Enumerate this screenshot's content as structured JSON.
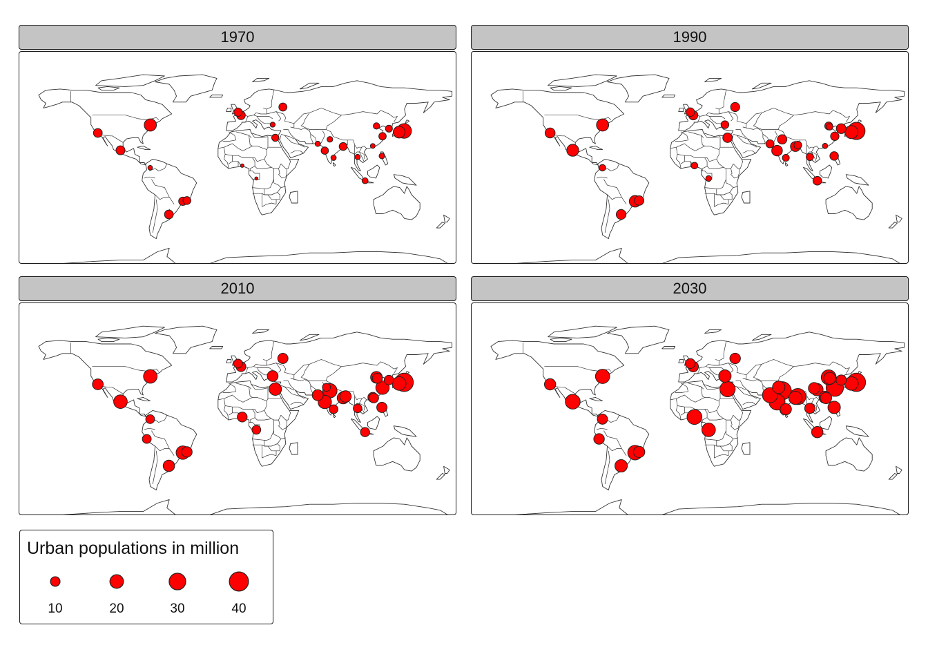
{
  "map": {
    "marker_fill": "#ff0000",
    "marker_stroke": "#222222",
    "land_stroke": "#333333",
    "strip_fill": "#c4c4c4",
    "panels": [
      {
        "year": "1970",
        "cities": [
          {
            "lon": -74,
            "lat": 40.7,
            "pop": 16.2
          },
          {
            "lon": -118.2,
            "lat": 34,
            "pop": 8.4
          },
          {
            "lon": -99.1,
            "lat": 19.4,
            "pop": 8.8
          },
          {
            "lon": -74.1,
            "lat": 4.7,
            "pop": 2.3
          },
          {
            "lon": -46.6,
            "lat": -23.5,
            "pop": 7.6
          },
          {
            "lon": -43.2,
            "lat": -22.9,
            "pop": 6.8
          },
          {
            "lon": -58.4,
            "lat": -34.6,
            "pop": 8.4
          },
          {
            "lon": -0.1,
            "lat": 51.5,
            "pop": 7.5
          },
          {
            "lon": 2.35,
            "lat": 48.9,
            "pop": 8.2
          },
          {
            "lon": 37.6,
            "lat": 55.8,
            "pop": 7.1
          },
          {
            "lon": 29,
            "lat": 41,
            "pop": 2.8
          },
          {
            "lon": 31.2,
            "lat": 30,
            "pop": 5.6
          },
          {
            "lon": 3.4,
            "lat": 6.5,
            "pop": 1.4
          },
          {
            "lon": 15.3,
            "lat": -4.3,
            "pop": 1.1
          },
          {
            "lon": 67,
            "lat": 24.9,
            "pop": 3.1
          },
          {
            "lon": 77.2,
            "lat": 28.6,
            "pop": 3.5
          },
          {
            "lon": 72.9,
            "lat": 19.1,
            "pop": 5.8
          },
          {
            "lon": 88.4,
            "lat": 22.6,
            "pop": 6.9
          },
          {
            "lon": 80.3,
            "lat": 13.1,
            "pop": 3.1
          },
          {
            "lon": 100.5,
            "lat": 13.8,
            "pop": 3.1
          },
          {
            "lon": 106.8,
            "lat": -6.2,
            "pop": 3.9
          },
          {
            "lon": 121,
            "lat": 14.6,
            "pop": 3.5
          },
          {
            "lon": 116.4,
            "lat": 39.9,
            "pop": 4.4
          },
          {
            "lon": 121.5,
            "lat": 31.2,
            "pop": 6
          },
          {
            "lon": 113.3,
            "lat": 23.1,
            "pop": 2.5
          },
          {
            "lon": 126.9,
            "lat": 37.6,
            "pop": 5.3
          },
          {
            "lon": 139.7,
            "lat": 35.7,
            "pop": 23.3
          },
          {
            "lon": 135.5,
            "lat": 34.7,
            "pop": 15.3
          }
        ]
      },
      {
        "year": "1990",
        "cities": [
          {
            "lon": -74,
            "lat": 40.7,
            "pop": 16.1
          },
          {
            "lon": -118.2,
            "lat": 34,
            "pop": 10.9
          },
          {
            "lon": -99.1,
            "lat": 19.4,
            "pop": 15.6
          },
          {
            "lon": -74.1,
            "lat": 4.7,
            "pop": 4.7
          },
          {
            "lon": -46.6,
            "lat": -23.5,
            "pop": 14.8
          },
          {
            "lon": -43.2,
            "lat": -22.9,
            "pop": 9.7
          },
          {
            "lon": -58.4,
            "lat": -34.6,
            "pop": 10.5
          },
          {
            "lon": -0.1,
            "lat": 51.5,
            "pop": 8
          },
          {
            "lon": 2.35,
            "lat": 48.9,
            "pop": 9.3
          },
          {
            "lon": 37.6,
            "lat": 55.8,
            "pop": 9
          },
          {
            "lon": 29,
            "lat": 41,
            "pop": 6.6
          },
          {
            "lon": 31.2,
            "lat": 30,
            "pop": 9.9
          },
          {
            "lon": 3.4,
            "lat": 6.5,
            "pop": 4.8
          },
          {
            "lon": 15.3,
            "lat": -4.3,
            "pop": 3.6
          },
          {
            "lon": 67,
            "lat": 24.9,
            "pop": 7.1
          },
          {
            "lon": 77.2,
            "lat": 28.6,
            "pop": 9.7
          },
          {
            "lon": 72.9,
            "lat": 19.1,
            "pop": 12.4
          },
          {
            "lon": 88.4,
            "lat": 22.6,
            "pop": 10.9
          },
          {
            "lon": 80.3,
            "lat": 13.1,
            "pop": 5.3
          },
          {
            "lon": 90.4,
            "lat": 23.8,
            "pop": 6.6
          },
          {
            "lon": 100.5,
            "lat": 13.8,
            "pop": 5.9
          },
          {
            "lon": 106.8,
            "lat": -6.2,
            "pop": 8.2
          },
          {
            "lon": 121,
            "lat": 14.6,
            "pop": 8
          },
          {
            "lon": 116.4,
            "lat": 39.9,
            "pop": 6.8
          },
          {
            "lon": 121.5,
            "lat": 31.2,
            "pop": 7.8
          },
          {
            "lon": 117.2,
            "lat": 39.1,
            "pop": 4.6
          },
          {
            "lon": 113.3,
            "lat": 23.1,
            "pop": 3.1
          },
          {
            "lon": 126.9,
            "lat": 37.6,
            "pop": 10.5
          },
          {
            "lon": 139.7,
            "lat": 35.7,
            "pop": 32.5
          },
          {
            "lon": 135.5,
            "lat": 34.7,
            "pop": 18.4
          }
        ]
      },
      {
        "year": "2010",
        "cities": [
          {
            "lon": -74,
            "lat": 40.7,
            "pop": 20.1
          },
          {
            "lon": -118.2,
            "lat": 34,
            "pop": 12.8
          },
          {
            "lon": -99.1,
            "lat": 19.4,
            "pop": 20.1
          },
          {
            "lon": -74.1,
            "lat": 4.7,
            "pop": 8.5
          },
          {
            "lon": -46.6,
            "lat": -23.5,
            "pop": 19.7
          },
          {
            "lon": -43.2,
            "lat": -22.9,
            "pop": 12
          },
          {
            "lon": -58.4,
            "lat": -34.6,
            "pop": 14.2
          },
          {
            "lon": -77,
            "lat": -12,
            "pop": 8.6
          },
          {
            "lon": -0.1,
            "lat": 51.5,
            "pop": 8.6
          },
          {
            "lon": 2.35,
            "lat": 48.9,
            "pop": 10.5
          },
          {
            "lon": 37.6,
            "lat": 55.8,
            "pop": 11.5
          },
          {
            "lon": 29,
            "lat": 41,
            "pop": 12.7
          },
          {
            "lon": 31.2,
            "lat": 30,
            "pop": 16.9
          },
          {
            "lon": 3.4,
            "lat": 6.5,
            "pop": 10.6
          },
          {
            "lon": 15.3,
            "lat": -4.3,
            "pop": 8.4
          },
          {
            "lon": 67,
            "lat": 24.9,
            "pop": 13.1
          },
          {
            "lon": 74.3,
            "lat": 31.5,
            "pop": 7.1
          },
          {
            "lon": 77.2,
            "lat": 28.6,
            "pop": 22.2
          },
          {
            "lon": 72.9,
            "lat": 19.1,
            "pop": 19.4
          },
          {
            "lon": 88.4,
            "lat": 22.6,
            "pop": 15.6
          },
          {
            "lon": 80.3,
            "lat": 13.1,
            "pop": 8.5
          },
          {
            "lon": 90.4,
            "lat": 23.8,
            "pop": 14.2
          },
          {
            "lon": 100.5,
            "lat": 13.8,
            "pop": 8.2
          },
          {
            "lon": 106.8,
            "lat": -6.2,
            "pop": 9.2
          },
          {
            "lon": 121,
            "lat": 14.6,
            "pop": 11.6
          },
          {
            "lon": 116.4,
            "lat": 39.9,
            "pop": 15
          },
          {
            "lon": 121.5,
            "lat": 31.2,
            "pop": 19.6
          },
          {
            "lon": 117.2,
            "lat": 39.1,
            "pop": 10.9
          },
          {
            "lon": 113.3,
            "lat": 23.1,
            "pop": 10.5
          },
          {
            "lon": 114.1,
            "lat": 22.5,
            "pop": 10.2
          },
          {
            "lon": 126.9,
            "lat": 37.6,
            "pop": 9.8
          },
          {
            "lon": 139.7,
            "lat": 35.7,
            "pop": 36.9
          },
          {
            "lon": 135.5,
            "lat": 34.7,
            "pop": 20.3
          }
        ]
      },
      {
        "year": "2030",
        "cities": [
          {
            "lon": -74,
            "lat": 40.7,
            "pop": 22
          },
          {
            "lon": -118.2,
            "lat": 34,
            "pop": 14
          },
          {
            "lon": -99.1,
            "lat": 19.4,
            "pop": 23.9
          },
          {
            "lon": -74.1,
            "lat": 4.7,
            "pop": 11.4
          },
          {
            "lon": -46.6,
            "lat": -23.5,
            "pop": 23.4
          },
          {
            "lon": -43.2,
            "lat": -22.9,
            "pop": 13.8
          },
          {
            "lon": -58.4,
            "lat": -34.6,
            "pop": 16.9
          },
          {
            "lon": -77,
            "lat": -12,
            "pop": 12.2
          },
          {
            "lon": -0.1,
            "lat": 51.5,
            "pop": 10.5
          },
          {
            "lon": 2.35,
            "lat": 48.9,
            "pop": 11.8
          },
          {
            "lon": 37.6,
            "lat": 55.8,
            "pop": 12.2
          },
          {
            "lon": 29,
            "lat": 41,
            "pop": 16.7
          },
          {
            "lon": 31.2,
            "lat": 30,
            "pop": 25.5
          },
          {
            "lon": 3.4,
            "lat": 6.5,
            "pop": 24.2
          },
          {
            "lon": 15.3,
            "lat": -4.3,
            "pop": 20
          },
          {
            "lon": 67,
            "lat": 24.9,
            "pop": 24.8
          },
          {
            "lon": 74.3,
            "lat": 31.5,
            "pop": 16.9
          },
          {
            "lon": 77.2,
            "lat": 28.6,
            "pop": 36.1
          },
          {
            "lon": 72.9,
            "lat": 19.1,
            "pop": 27.8
          },
          {
            "lon": 88.4,
            "lat": 22.6,
            "pop": 19.1
          },
          {
            "lon": 80.3,
            "lat": 13.1,
            "pop": 13.8
          },
          {
            "lon": 90.4,
            "lat": 23.8,
            "pop": 28.1
          },
          {
            "lon": 100.5,
            "lat": 13.8,
            "pop": 11.5
          },
          {
            "lon": 106.8,
            "lat": -6.2,
            "pop": 14
          },
          {
            "lon": 121,
            "lat": 14.6,
            "pop": 16.8
          },
          {
            "lon": 116.4,
            "lat": 39.9,
            "pop": 24.3
          },
          {
            "lon": 121.5,
            "lat": 31.2,
            "pop": 32.9
          },
          {
            "lon": 117.2,
            "lat": 39.1,
            "pop": 15.7
          },
          {
            "lon": 113.3,
            "lat": 23.1,
            "pop": 16
          },
          {
            "lon": 114.1,
            "lat": 22.5,
            "pop": 13.9
          },
          {
            "lon": 106.5,
            "lat": 29.6,
            "pop": 16.5
          },
          {
            "lon": 104.1,
            "lat": 30.7,
            "pop": 14.3
          },
          {
            "lon": 126.9,
            "lat": 37.6,
            "pop": 11.5
          },
          {
            "lon": 139.7,
            "lat": 35.7,
            "pop": 36.6
          },
          {
            "lon": 135.5,
            "lat": 34.7,
            "pop": 20.1
          }
        ]
      }
    ]
  },
  "legend": {
    "title": "Urban populations in million",
    "labels": [
      "10",
      "20",
      "30",
      "40"
    ],
    "values": [
      10,
      20,
      30,
      40
    ]
  }
}
